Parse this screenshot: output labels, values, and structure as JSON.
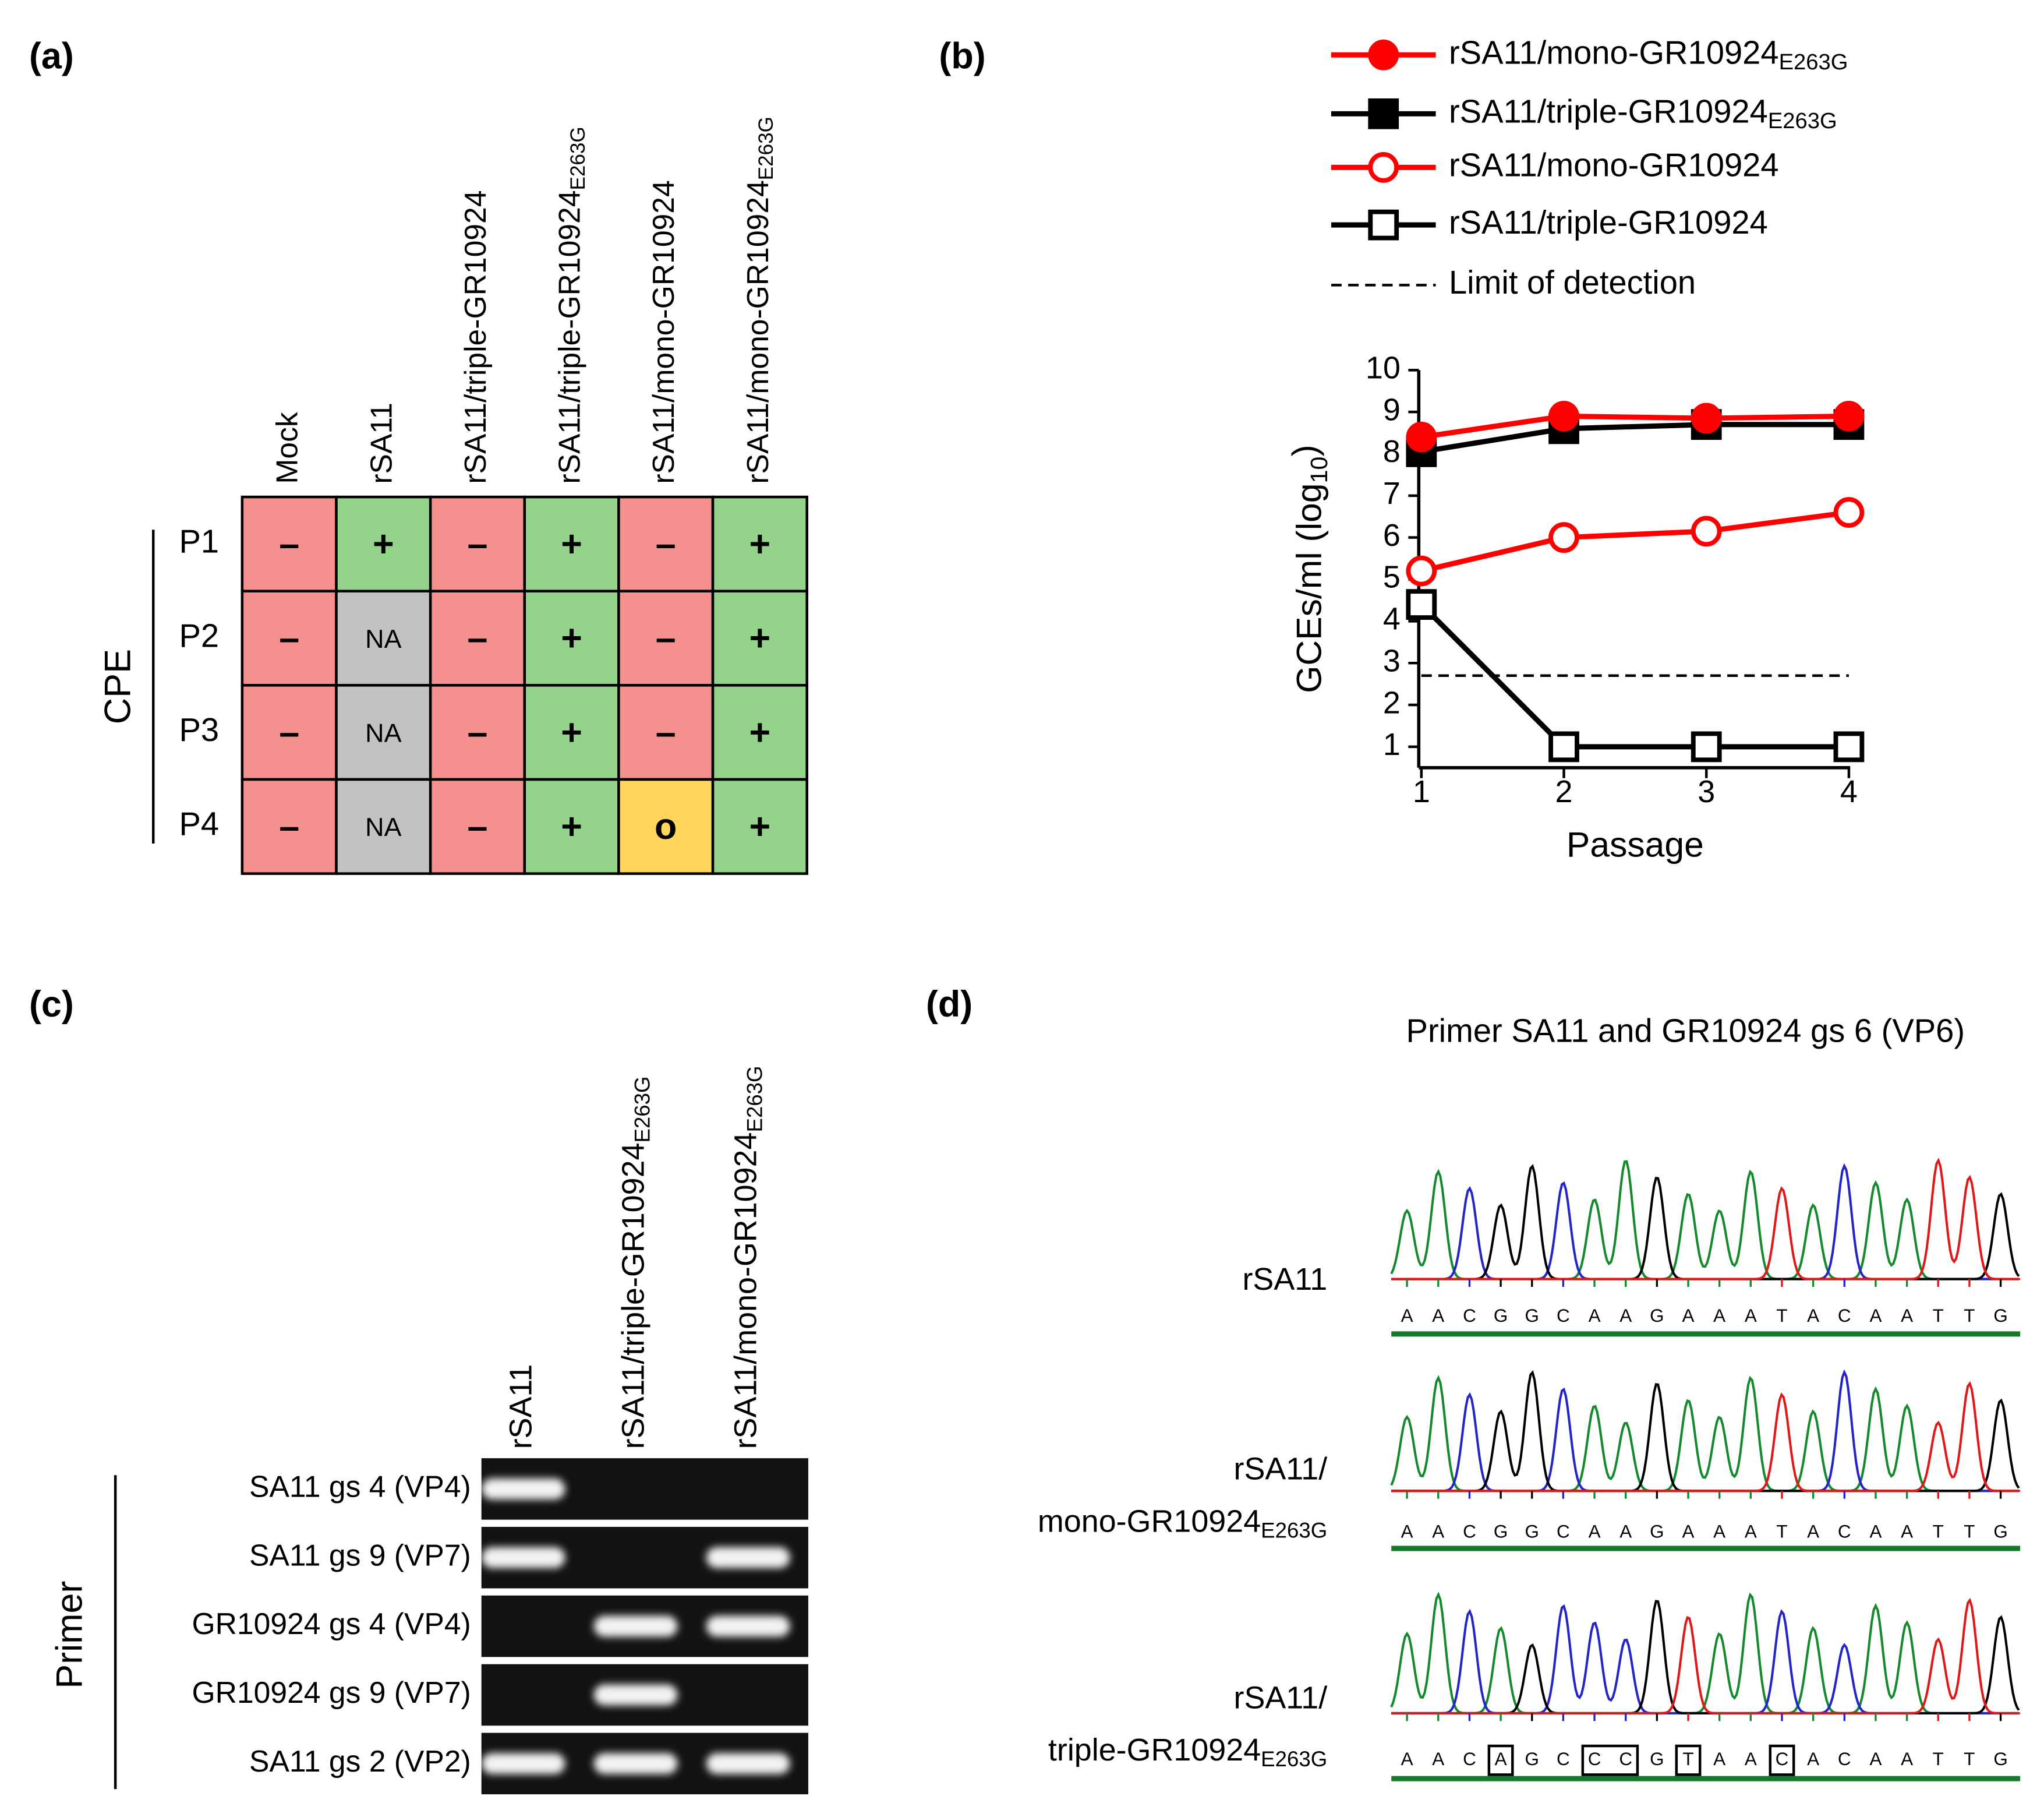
{
  "panel_a": {
    "label": "(a)",
    "columns": [
      {
        "text": "Mock"
      },
      {
        "text": "rSA11"
      },
      {
        "text": "rSA11/triple-GR10924"
      },
      {
        "text": "rSA11/triple-GR10924",
        "subscript": "E263G"
      },
      {
        "text": "rSA11/mono-GR10924"
      },
      {
        "text": "rSA11/mono-GR10924",
        "subscript": "E263G"
      }
    ],
    "group_label": "CPE",
    "rows": [
      "P1",
      "P2",
      "P3",
      "P4"
    ],
    "cells": [
      [
        "–",
        "+",
        "–",
        "+",
        "–",
        "+"
      ],
      [
        "–",
        "NA",
        "–",
        "+",
        "–",
        "+"
      ],
      [
        "–",
        "NA",
        "–",
        "+",
        "–",
        "+"
      ],
      [
        "–",
        "NA",
        "–",
        "+",
        "o",
        "+"
      ]
    ],
    "cell_colors": {
      "–": "#f4918f",
      "+": "#93d48a",
      "NA": "#c2c2c2",
      "o": "#ffd65a"
    }
  },
  "chart_data": {
    "type": "line",
    "panel_label": "(b)",
    "x": [
      1,
      2,
      3,
      4
    ],
    "xlim": [
      1,
      4
    ],
    "xticks": [
      1,
      2,
      3,
      4
    ],
    "ylim": [
      0.5,
      10
    ],
    "yticks": [
      1,
      2,
      3,
      4,
      5,
      6,
      7,
      8,
      9,
      10
    ],
    "xlabel": "Passage",
    "ylabel": {
      "text": "GCEs/ml (log",
      "subscript": "10",
      "suffix": ")"
    },
    "series": [
      {
        "name": "rSA11/mono-GR10924",
        "subscript": "E263G",
        "color": "#ff0000",
        "marker": "circle",
        "filled": true,
        "values": [
          8.4,
          8.9,
          8.85,
          8.9
        ]
      },
      {
        "name": "rSA11/triple-GR10924",
        "subscript": "E263G",
        "color": "#000000",
        "marker": "square",
        "filled": true,
        "values": [
          8.05,
          8.6,
          8.7,
          8.7
        ]
      },
      {
        "name": "rSA11/mono-GR10924",
        "color": "#ff0000",
        "marker": "circle",
        "filled": false,
        "values": [
          5.2,
          6.0,
          6.15,
          6.6
        ]
      },
      {
        "name": "rSA11/triple-GR10924",
        "color": "#000000",
        "marker": "square",
        "filled": false,
        "values": [
          4.4,
          1,
          1,
          1
        ]
      }
    ],
    "reference_lines": [
      {
        "name": "Limit of detection",
        "value": 2.7,
        "color": "#000000",
        "style": "dashed"
      }
    ]
  },
  "panel_c": {
    "label": "(c)",
    "lanes": [
      {
        "text": "rSA11"
      },
      {
        "text": "rSA11/triple-GR10924",
        "subscript": "E263G"
      },
      {
        "text": "rSA11/mono-GR10924",
        "subscript": "E263G"
      }
    ],
    "group_label": "Primer",
    "rows": [
      "SA11 gs 4 (VP4)",
      "SA11 gs 9 (VP7)",
      "GR10924 gs 4 (VP4)",
      "GR10924 gs 9 (VP7)",
      "SA11 gs 2 (VP2)"
    ],
    "bands": [
      [
        true,
        false,
        false
      ],
      [
        true,
        false,
        true
      ],
      [
        false,
        true,
        true
      ],
      [
        false,
        true,
        false
      ],
      [
        true,
        true,
        true
      ]
    ]
  },
  "panel_d": {
    "label": "(d)",
    "title": "Primer SA11 and GR10924 gs 6 (VP6)",
    "base_colors": {
      "A": "#138a2c",
      "C": "#2424c8",
      "G": "#000000",
      "T": "#e01818"
    },
    "samples": [
      {
        "label_lines": [
          {
            "text": "rSA11"
          }
        ],
        "sequence": [
          "A",
          "A",
          "C",
          "G",
          "G",
          "C",
          "A",
          "A",
          "G",
          "A",
          "A",
          "A",
          "T",
          "A",
          "C",
          "A",
          "A",
          "T",
          "T",
          "G"
        ],
        "boxed": []
      },
      {
        "label_lines": [
          {
            "text": "rSA11/"
          },
          {
            "text": "mono-GR10924",
            "subscript": "E263G"
          }
        ],
        "sequence": [
          "A",
          "A",
          "C",
          "G",
          "G",
          "C",
          "A",
          "A",
          "G",
          "A",
          "A",
          "A",
          "T",
          "A",
          "C",
          "A",
          "A",
          "T",
          "T",
          "G"
        ],
        "boxed": []
      },
      {
        "label_lines": [
          {
            "text": "rSA11/"
          },
          {
            "text": "triple-GR10924",
            "subscript": "E263G"
          }
        ],
        "sequence": [
          "A",
          "A",
          "C",
          "A",
          "G",
          "C",
          "C",
          "C",
          "G",
          "T",
          "A",
          "A",
          "C",
          "A",
          "C",
          "A",
          "A",
          "T",
          "T",
          "G"
        ],
        "boxed": [
          [
            3,
            3
          ],
          [
            6,
            7
          ],
          [
            9,
            9
          ],
          [
            12,
            12
          ]
        ]
      }
    ]
  }
}
